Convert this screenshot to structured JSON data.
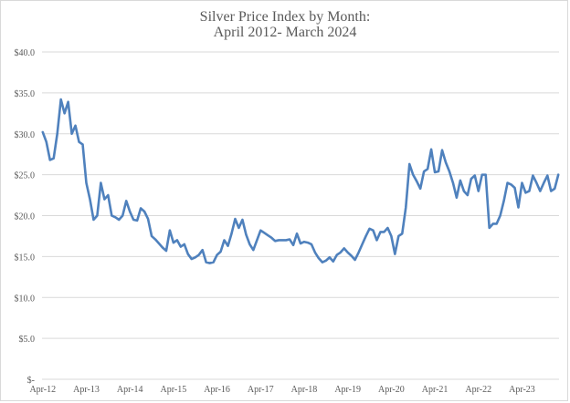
{
  "chart_data": {
    "type": "line",
    "title": "Silver Price Index by Month:",
    "subtitle": "April 2012- March 2024",
    "xlabel": "",
    "ylabel": "",
    "ylim": [
      0,
      40
    ],
    "grid": true,
    "legend": "none",
    "line_color": "#4f81bd",
    "y_ticks": [
      {
        "value": 0,
        "label": "$-"
      },
      {
        "value": 5,
        "label": "$5.0"
      },
      {
        "value": 10,
        "label": "$10.0"
      },
      {
        "value": 15,
        "label": "$15.0"
      },
      {
        "value": 20,
        "label": "$20.0"
      },
      {
        "value": 25,
        "label": "$25.0"
      },
      {
        "value": 30,
        "label": "$30.0"
      },
      {
        "value": 35,
        "label": "$35.0"
      },
      {
        "value": 40,
        "label": "$40.0"
      }
    ],
    "x_ticks": [
      "Apr-12",
      "Apr-13",
      "Apr-14",
      "Apr-15",
      "Apr-16",
      "Apr-17",
      "Apr-18",
      "Apr-19",
      "Apr-20",
      "Apr-21",
      "Apr-22",
      "Apr-23"
    ],
    "x_start": "2012-04",
    "series": [
      {
        "values": [
          30.2,
          29.0,
          26.8,
          27.0,
          30.0,
          34.2,
          32.5,
          33.9,
          30.0,
          31.0,
          29.0,
          28.7,
          24.0,
          22.0,
          19.5,
          20.0,
          24.0,
          22.0,
          22.5,
          20.0,
          19.8,
          19.5,
          20.0,
          21.8,
          20.5,
          19.5,
          19.4,
          20.9,
          20.5,
          19.6,
          17.5,
          17.1,
          16.6,
          16.1,
          15.7,
          18.2,
          16.7,
          17.0,
          16.2,
          16.5,
          15.3,
          14.7,
          14.9,
          15.2,
          15.8,
          14.3,
          14.2,
          14.3,
          15.2,
          15.6,
          17.0,
          16.3,
          17.8,
          19.6,
          18.5,
          19.5,
          17.7,
          16.5,
          15.8,
          17.0,
          18.2,
          17.9,
          17.6,
          17.3,
          16.9,
          17.0,
          17.0,
          17.0,
          17.1,
          16.4,
          17.8,
          16.6,
          16.8,
          16.7,
          16.5,
          15.5,
          14.8,
          14.3,
          14.5,
          14.9,
          14.4,
          15.2,
          15.5,
          16.0,
          15.5,
          15.1,
          14.6,
          15.5,
          16.5,
          17.5,
          18.4,
          18.2,
          17.0,
          18.0,
          18.0,
          18.5,
          17.5,
          15.3,
          17.5,
          17.8,
          21.0,
          26.3,
          25.0,
          24.2,
          23.3,
          25.4,
          25.7,
          28.1,
          25.3,
          25.4,
          28.0,
          26.5,
          25.4,
          24.0,
          22.2,
          24.3,
          23.0,
          22.5,
          24.5,
          24.9,
          23.0,
          25.0,
          25.0,
          18.5,
          19.0,
          19.0,
          20.0,
          21.8,
          24.0,
          23.8,
          23.4,
          21.0,
          24.0,
          22.8,
          23.0,
          24.9,
          24.0,
          23.0,
          24.0,
          24.9,
          23.0,
          23.3,
          25.0
        ]
      }
    ]
  }
}
